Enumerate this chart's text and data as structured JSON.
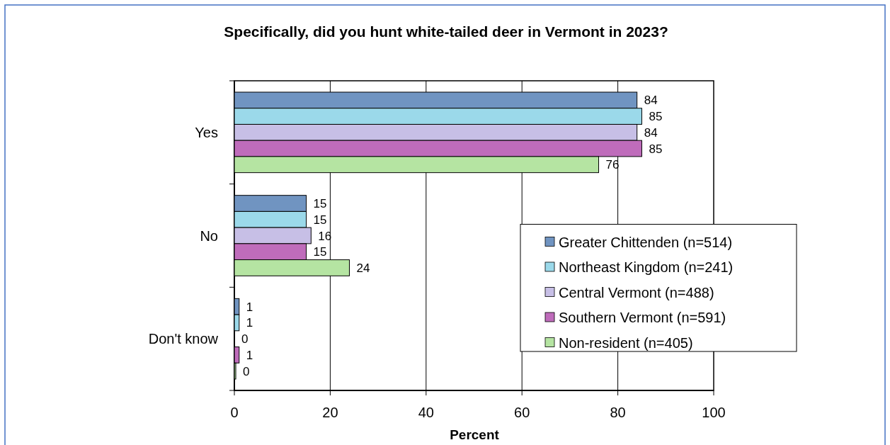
{
  "chart_data": {
    "type": "bar",
    "orientation": "horizontal",
    "title": "Specifically, did you hunt white-tailed deer in Vermont in 2023?",
    "xlabel": "Percent",
    "categories": [
      "Yes",
      "No",
      "Don't know"
    ],
    "series": [
      {
        "name": "Greater Chittenden (n=514)",
        "color": "#7094c1",
        "values": [
          84,
          15,
          1
        ],
        "value_labels": [
          "84",
          "15",
          "1"
        ]
      },
      {
        "name": "Northeast Kingdom (n=241)",
        "color": "#9bd9ea",
        "values": [
          85,
          15,
          1
        ],
        "value_labels": [
          "85",
          "15",
          "1"
        ]
      },
      {
        "name": "Central Vermont (n=488)",
        "color": "#c7bfe6",
        "values": [
          84,
          16,
          0
        ],
        "value_labels": [
          "84",
          "16",
          "0"
        ]
      },
      {
        "name": "Southern Vermont (n=591)",
        "color": "#bf6cbb",
        "values": [
          85,
          15,
          1
        ],
        "value_labels": [
          "85",
          "15",
          "1"
        ]
      },
      {
        "name": "Non-resident (n=405)",
        "color": "#b5e4a2",
        "values": [
          76,
          24,
          0.3
        ],
        "value_labels": [
          "76",
          "24",
          "0"
        ]
      }
    ],
    "xlim": [
      0,
      100
    ],
    "xticks": [
      0,
      20,
      40,
      60,
      80,
      100
    ],
    "grid": "x",
    "legend": "bottom right"
  }
}
